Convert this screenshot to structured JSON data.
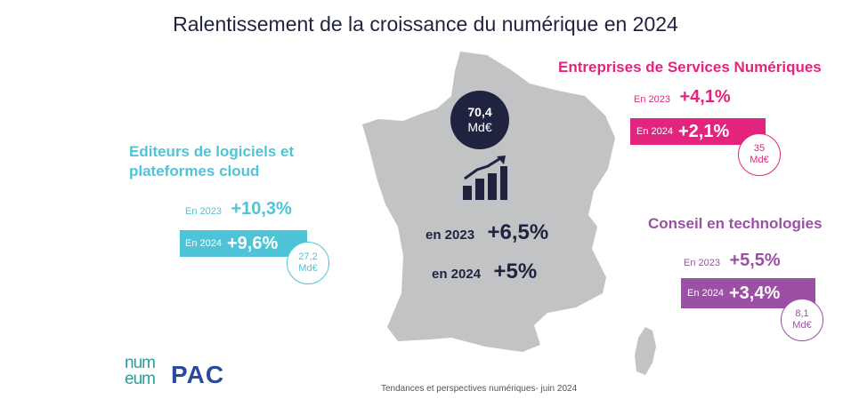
{
  "title": "Ralentissement de la croissance du numérique en 2024",
  "colors": {
    "dark": "#1f2340",
    "cyan": "#4ec4d8",
    "magenta": "#e3247f",
    "purple": "#9b50a5",
    "map": "#c2c3c5"
  },
  "center": {
    "bubble_value": "70,4",
    "bubble_unit": "Md€",
    "icon": "growth-chart-icon",
    "y2023_label": "en 2023",
    "y2023_value": "+6,5%",
    "y2024_label": "en 2024",
    "y2024_value": "+5%"
  },
  "editeurs": {
    "title_line1": "Editeurs de logiciels et",
    "title_line2": "plateformes cloud",
    "y2023_label": "En 2023",
    "y2023_value": "+10,3%",
    "y2024_label": "En 2024",
    "y2024_value": "+9,6%",
    "bubble_value": "27,2",
    "bubble_unit": "Md€"
  },
  "esn": {
    "title": "Entreprises de Services Numériques",
    "y2023_label": "En 2023",
    "y2023_value": "+4,1%",
    "y2024_label": "En 2024",
    "y2024_value": "+2,1%",
    "bubble_value": "35",
    "bubble_unit": "Md€"
  },
  "conseil": {
    "title": "Conseil en technologies",
    "y2023_label": "En 2023",
    "y2023_value": "+5,5%",
    "y2024_label": "En 2024",
    "y2024_value": "+3,4%",
    "bubble_value": "8,1",
    "bubble_unit": "Md€"
  },
  "footer": {
    "source": "Tendances et perspectives numériques- juin 2024",
    "logo1_line1": "num",
    "logo1_line2": "eum",
    "logo2": "PAC"
  }
}
